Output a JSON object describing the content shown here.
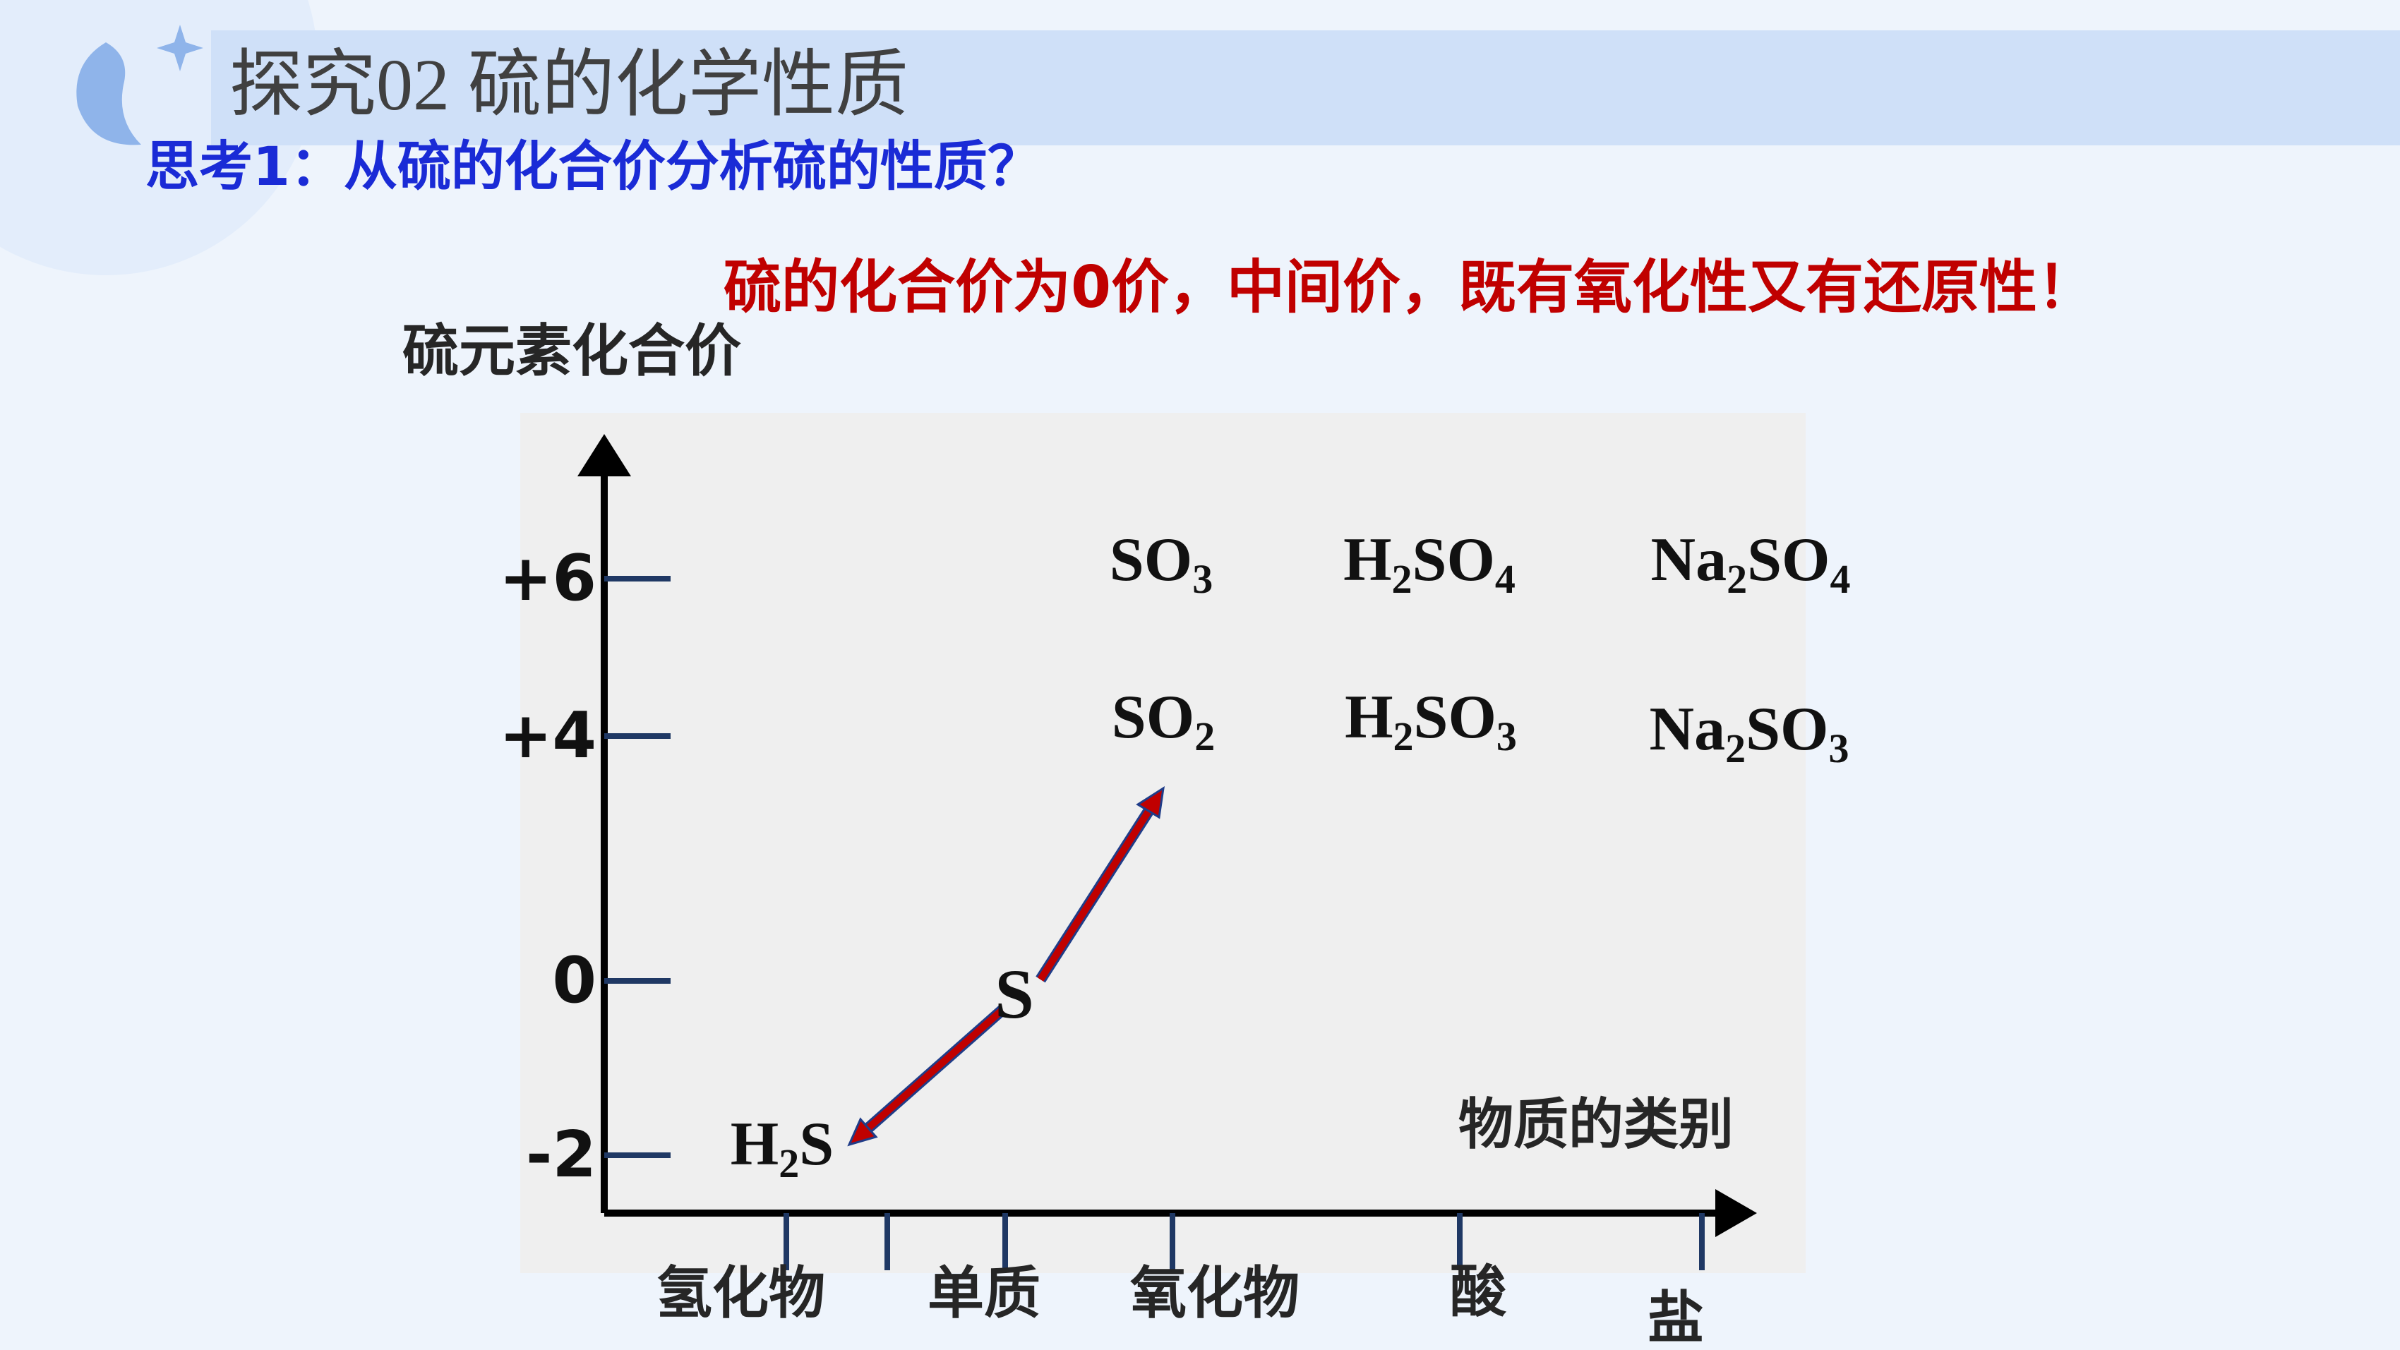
{
  "header": {
    "title": "探究02  硫的化学性质"
  },
  "question": "思考1：从硫的化合价分析硫的性质？",
  "answer": "硫的化合价为0价，中间价，既有氧化性又有还原性！",
  "diagram": {
    "y_axis_title": "硫元素化合价",
    "x_axis_title": "物质的类别",
    "valences": [
      "+6",
      "+4",
      "0",
      "-2"
    ],
    "categories": [
      "氢化物",
      "单质",
      "氧化物",
      "酸",
      "盐"
    ],
    "compounds": [
      {
        "parts": [
          "SO",
          "3"
        ]
      },
      {
        "parts": [
          "H",
          "2",
          "SO",
          "4"
        ]
      },
      {
        "parts": [
          "Na",
          "2",
          "SO",
          "4"
        ]
      },
      {
        "parts": [
          "SO",
          "2"
        ]
      },
      {
        "parts": [
          "H",
          "2",
          "SO",
          "3"
        ]
      },
      {
        "parts": [
          "Na",
          "2",
          "SO",
          "3"
        ]
      },
      {
        "parts": [
          "H",
          "2",
          "S"
        ]
      },
      {
        "parts": [
          "S"
        ]
      }
    ]
  }
}
